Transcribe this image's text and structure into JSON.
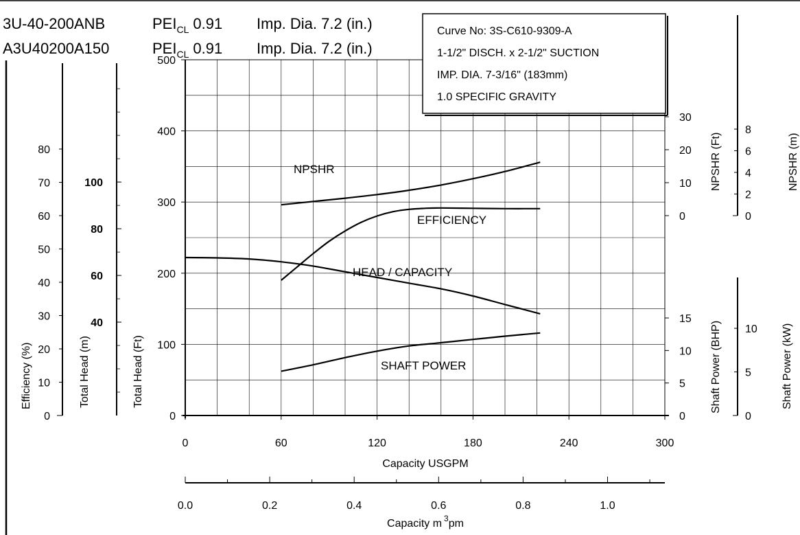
{
  "header": {
    "row1": {
      "model": "3U-40-200ANB",
      "pei_label": "PEI",
      "pei_sub": "CL",
      "pei_value": "0.91",
      "imp_dia": "Imp. Dia. 7.2 (in.)"
    },
    "row2": {
      "model": "A3U40200A150",
      "pei_label": "PEI",
      "pei_sub": "CL",
      "pei_value": "0.91",
      "imp_dia": "Imp. Dia. 7.2 (in.)"
    }
  },
  "info_box": {
    "lines": [
      "Curve No: 3S-C610-9309-A",
      "1-1/2\" DISCH. x 2-1/2\" SUCTION",
      "IMP. DIA. 7-3/16\" (183mm)",
      "1.0 SPECIFIC GRAVITY"
    ]
  },
  "axes": {
    "capacity_usgpm": {
      "title": "Capacity USGPM",
      "ticks": [
        "0",
        "60",
        "120",
        "180",
        "240",
        "300"
      ]
    },
    "capacity_m3pm": {
      "title_main": "Capacity m",
      "title_sup": "3",
      "title_end": "pm",
      "ticks": [
        "0.0",
        "0.2",
        "0.4",
        "0.6",
        "0.8",
        "1.0"
      ]
    },
    "efficiency": {
      "title": "Efficiency (%)",
      "ticks": [
        "0",
        "10",
        "20",
        "30",
        "40",
        "50",
        "60",
        "70",
        "80"
      ]
    },
    "total_head_m": {
      "title": "Total Head (m)",
      "ticks": [
        "40",
        "60",
        "80",
        "100"
      ]
    },
    "total_head_ft": {
      "title": "Total Head (Ft)",
      "ticks": [
        "0",
        "100",
        "200",
        "300",
        "400",
        "500"
      ]
    },
    "npshr_ft": {
      "title": "NPSHR (Ft)",
      "ticks": [
        "0",
        "10",
        "20",
        "30"
      ]
    },
    "npshr_m": {
      "title": "NPSHR (m)",
      "ticks": [
        "0",
        "2",
        "4",
        "6",
        "8"
      ]
    },
    "shaft_power_bhp": {
      "title": "Shaft Power (BHP)",
      "ticks": [
        "0",
        "5",
        "10",
        "15"
      ]
    },
    "shaft_power_kw": {
      "title": "Shaft Power (kW)",
      "ticks": [
        "0",
        "5",
        "10"
      ]
    }
  },
  "curve_labels": {
    "npshr": "NPSHR",
    "efficiency": "EFFICIENCY",
    "head": "HEAD / CAPACITY",
    "power": "SHAFT POWER"
  },
  "chart_data": {
    "type": "line",
    "xlabel": "Capacity USGPM",
    "xlim": [
      0,
      300
    ],
    "x_secondary_label": "Capacity m3pm",
    "series": [
      {
        "name": "HEAD / CAPACITY",
        "axis": "Total Head (Ft)",
        "ylim": [
          0,
          500
        ],
        "x": [
          0,
          20,
          40,
          60,
          80,
          100,
          120,
          140,
          160,
          180,
          200,
          222
        ],
        "y": [
          222,
          221.5,
          220,
          216,
          210,
          202,
          194,
          186,
          178,
          168,
          156,
          143
        ]
      },
      {
        "name": "EFFICIENCY",
        "axis": "Efficiency (%)",
        "ylim": [
          0,
          80
        ],
        "x": [
          60,
          70,
          80,
          90,
          100,
          110,
          120,
          130,
          140,
          150,
          160,
          180,
          200,
          222
        ],
        "y": [
          40.6,
          44.6,
          48.6,
          52.3,
          55.4,
          58,
          59.9,
          61.2,
          61.9,
          62.2,
          62.3,
          62.2,
          62.1,
          62.1
        ]
      },
      {
        "name": "NPSHR",
        "axis": "NPSHR (Ft)",
        "ylim": [
          0,
          30
        ],
        "x": [
          60,
          80,
          100,
          120,
          140,
          160,
          180,
          200,
          222
        ],
        "y": [
          3.3,
          4.3,
          5.3,
          6.4,
          7.7,
          9.3,
          11.2,
          13.4,
          16.2
        ]
      },
      {
        "name": "SHAFT POWER",
        "axis": "Shaft Power (BHP)",
        "ylim": [
          0,
          15
        ],
        "x": [
          60,
          80,
          100,
          120,
          140,
          160,
          180,
          200,
          222
        ],
        "y": [
          6.8,
          7.8,
          8.9,
          9.9,
          10.7,
          11.2,
          11.7,
          12.2,
          12.7
        ]
      }
    ],
    "grid": true
  }
}
